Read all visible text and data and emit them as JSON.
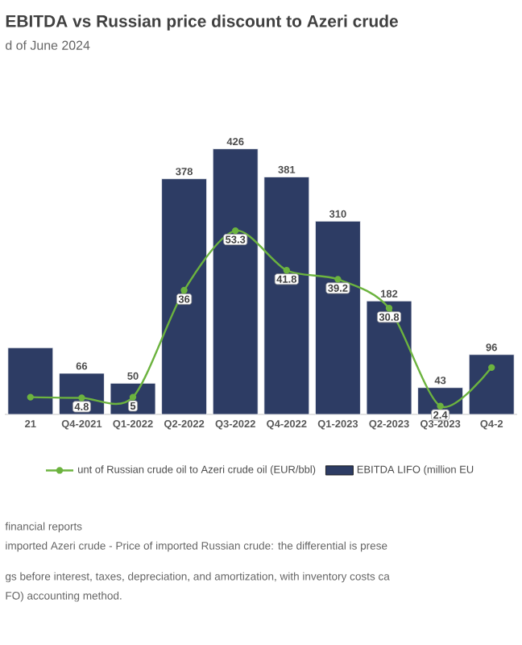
{
  "chart_data": {
    "type": "bar",
    "title": "EBITDA vs Russian price discount to Azeri crude",
    "subtitle": "d of June 2024",
    "categories": [
      "21",
      "Q4-2021",
      "Q1-2022",
      "Q2-2022",
      "Q3-2022",
      "Q4-2022",
      "Q1-2023",
      "Q2-2023",
      "Q3-2023",
      "Q4-2"
    ],
    "series": [
      {
        "name": "unt of Russian crude oil to Azeri crude oil (EUR/bbl)",
        "type": "line",
        "axis": "y2",
        "color": "#6cb33f",
        "marker": "circle",
        "values": [
          5,
          4.8,
          5,
          36,
          53.3,
          41.8,
          39.2,
          30.8,
          2.4,
          13.6
        ],
        "value_labels": [
          null,
          "4.8",
          "5",
          "36",
          "53.3",
          "41.8",
          "39.2",
          "30.8",
          "2.4",
          null
        ]
      },
      {
        "name": "EBITDA LIFO (million EU",
        "color": "#2d3c64",
        "values": [
          107,
          66,
          50,
          378,
          426,
          381,
          310,
          182,
          43,
          96
        ],
        "value_labels": [
          null,
          "66",
          "50",
          "378",
          "426",
          "381",
          "310",
          "182",
          "43",
          "96"
        ]
      }
    ],
    "legend": "bottom",
    "tick_labels": "x",
    "annotations": [
      "financial reports",
      "imported Azeri crude - Price of imported Russian crude: the differential is prese",
      "gs before interest, taxes, depreciation, and amortization, with inventory costs ca",
      "FO) accounting method."
    ]
  }
}
